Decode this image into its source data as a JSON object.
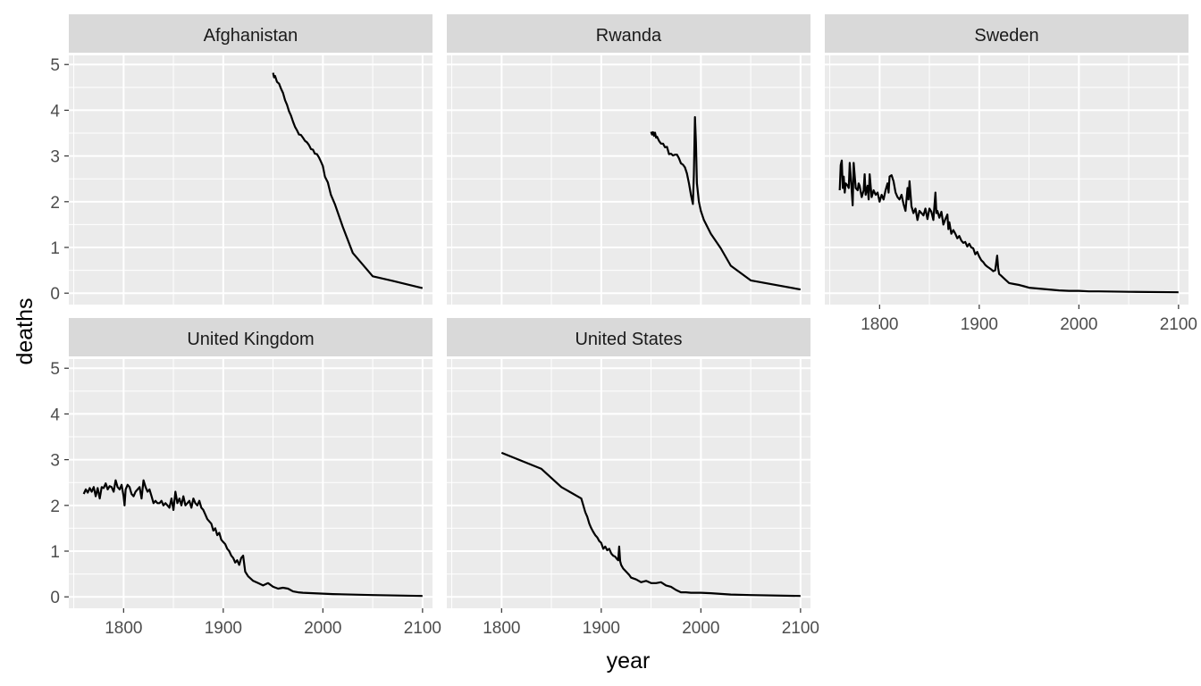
{
  "chart_data": {
    "type": "line",
    "layout": "facet_wrap",
    "xlabel": "year",
    "ylabel": "deaths",
    "xlim": [
      1745,
      2110
    ],
    "ylim": [
      -0.25,
      5.2
    ],
    "x_ticks": [
      1800,
      1900,
      2000,
      2100
    ],
    "y_ticks": [
      0,
      1,
      2,
      3,
      4,
      5
    ],
    "grid": true,
    "style": {
      "panel_background": "#ebebeb",
      "strip_background": "#d9d9d9",
      "grid_color": "#ffffff",
      "line_color": "#000000"
    },
    "panels": [
      {
        "name": "Afghanistan",
        "x": [
          1950,
          1951,
          1952,
          1954,
          1956,
          1958,
          1960,
          1962,
          1964,
          1966,
          1968,
          1970,
          1972,
          1974,
          1976,
          1978,
          1980,
          1982,
          1984,
          1986,
          1988,
          1990,
          1992,
          1994,
          1996,
          1998,
          2000,
          2002,
          2005,
          2008,
          2012,
          2020,
          2030,
          2050,
          2070,
          2100
        ],
        "y": [
          4.82,
          4.72,
          4.75,
          4.62,
          4.58,
          4.47,
          4.38,
          4.22,
          4.12,
          3.98,
          3.88,
          3.75,
          3.64,
          3.56,
          3.47,
          3.46,
          3.4,
          3.33,
          3.3,
          3.24,
          3.15,
          3.14,
          3.05,
          3.04,
          2.97,
          2.88,
          2.78,
          2.55,
          2.42,
          2.15,
          1.95,
          1.45,
          0.88,
          0.37,
          0.27,
          0.11
        ]
      },
      {
        "name": "Rwanda",
        "x": [
          1950,
          1951,
          1952,
          1953,
          1954,
          1955,
          1956,
          1958,
          1960,
          1962,
          1964,
          1966,
          1968,
          1970,
          1972,
          1974,
          1976,
          1978,
          1980,
          1982,
          1984,
          1986,
          1988,
          1990,
          1991,
          1992,
          1993,
          1994,
          1995,
          1996,
          1998,
          2000,
          2003,
          2010,
          2020,
          2030,
          2050,
          2100
        ],
        "y": [
          3.53,
          3.47,
          3.52,
          3.44,
          3.51,
          3.4,
          3.42,
          3.33,
          3.27,
          3.27,
          3.19,
          3.2,
          3.04,
          3.05,
          3.01,
          3.03,
          3.03,
          2.95,
          2.84,
          2.81,
          2.75,
          2.62,
          2.4,
          2.15,
          2.05,
          1.95,
          2.6,
          3.85,
          3.3,
          2.4,
          2.0,
          1.8,
          1.6,
          1.3,
          0.98,
          0.6,
          0.28,
          0.08
        ]
      },
      {
        "name": "Sweden",
        "x": [
          1760,
          1761,
          1762,
          1763,
          1764,
          1765,
          1766,
          1768,
          1769,
          1770,
          1772,
          1773,
          1774,
          1776,
          1778,
          1779,
          1780,
          1782,
          1784,
          1785,
          1786,
          1788,
          1789,
          1790,
          1792,
          1794,
          1796,
          1798,
          1800,
          1802,
          1804,
          1806,
          1808,
          1809,
          1810,
          1812,
          1814,
          1816,
          1818,
          1820,
          1822,
          1824,
          1826,
          1828,
          1829,
          1830,
          1832,
          1834,
          1836,
          1838,
          1840,
          1842,
          1844,
          1846,
          1848,
          1850,
          1852,
          1854,
          1856,
          1857,
          1858,
          1860,
          1862,
          1864,
          1866,
          1868,
          1869,
          1870,
          1872,
          1874,
          1876,
          1878,
          1880,
          1882,
          1884,
          1886,
          1888,
          1890,
          1892,
          1894,
          1896,
          1898,
          1900,
          1902,
          1904,
          1906,
          1908,
          1910,
          1912,
          1914,
          1916,
          1918,
          1919,
          1920,
          1922,
          1925,
          1930,
          1935,
          1940,
          1945,
          1950,
          1960,
          1970,
          1980,
          1990,
          2000,
          2010,
          2020,
          2050,
          2100
        ],
        "y": [
          2.25,
          2.8,
          2.9,
          2.3,
          2.55,
          2.2,
          2.4,
          2.35,
          2.3,
          2.85,
          2.25,
          1.92,
          2.85,
          2.3,
          2.25,
          2.4,
          2.35,
          2.1,
          2.25,
          2.6,
          2.15,
          2.35,
          2.05,
          2.6,
          2.1,
          2.25,
          2.15,
          2.2,
          2.0,
          2.15,
          2.05,
          2.25,
          2.4,
          2.2,
          2.55,
          2.58,
          2.45,
          2.2,
          2.1,
          2.05,
          2.15,
          1.95,
          1.8,
          2.3,
          2.05,
          2.45,
          1.9,
          1.75,
          1.85,
          1.6,
          1.8,
          1.75,
          1.7,
          1.85,
          1.62,
          1.85,
          1.78,
          1.6,
          2.2,
          1.75,
          1.8,
          1.65,
          1.78,
          1.5,
          1.62,
          1.72,
          1.4,
          1.55,
          1.3,
          1.38,
          1.3,
          1.2,
          1.25,
          1.15,
          1.1,
          1.12,
          1.02,
          1.08,
          1.0,
          0.98,
          0.85,
          0.9,
          0.8,
          0.72,
          0.68,
          0.62,
          0.58,
          0.55,
          0.52,
          0.48,
          0.5,
          0.82,
          0.55,
          0.42,
          0.38,
          0.32,
          0.22,
          0.2,
          0.18,
          0.15,
          0.12,
          0.1,
          0.08,
          0.06,
          0.05,
          0.05,
          0.04,
          0.04,
          0.03,
          0.02
        ]
      },
      {
        "name": "United Kingdom",
        "x": [
          1760,
          1762,
          1764,
          1766,
          1768,
          1770,
          1772,
          1774,
          1776,
          1778,
          1780,
          1782,
          1784,
          1786,
          1788,
          1790,
          1792,
          1794,
          1796,
          1798,
          1800,
          1801,
          1802,
          1804,
          1806,
          1808,
          1810,
          1812,
          1814,
          1816,
          1818,
          1820,
          1822,
          1824,
          1826,
          1828,
          1830,
          1832,
          1834,
          1836,
          1838,
          1840,
          1842,
          1844,
          1846,
          1848,
          1850,
          1852,
          1854,
          1856,
          1858,
          1860,
          1862,
          1864,
          1866,
          1868,
          1870,
          1872,
          1874,
          1876,
          1878,
          1880,
          1882,
          1884,
          1886,
          1888,
          1890,
          1892,
          1894,
          1896,
          1898,
          1900,
          1902,
          1904,
          1906,
          1908,
          1910,
          1912,
          1914,
          1916,
          1918,
          1920,
          1922,
          1925,
          1930,
          1935,
          1940,
          1945,
          1950,
          1955,
          1960,
          1965,
          1970,
          1975,
          1980,
          1990,
          2000,
          2010,
          2050,
          2100
        ],
        "y": [
          2.25,
          2.35,
          2.28,
          2.38,
          2.3,
          2.4,
          2.2,
          2.38,
          2.15,
          2.4,
          2.38,
          2.48,
          2.35,
          2.42,
          2.4,
          2.3,
          2.55,
          2.4,
          2.35,
          2.45,
          2.2,
          2.0,
          2.35,
          2.45,
          2.4,
          2.25,
          2.2,
          2.3,
          2.35,
          2.4,
          2.15,
          2.55,
          2.4,
          2.3,
          2.35,
          2.2,
          2.05,
          2.1,
          2.05,
          2.05,
          2.1,
          2.0,
          2.05,
          2.0,
          1.95,
          2.15,
          1.9,
          2.3,
          2.05,
          2.15,
          2.0,
          2.2,
          2.0,
          2.05,
          2.1,
          1.95,
          2.15,
          2.05,
          2.0,
          2.1,
          1.95,
          1.9,
          1.8,
          1.7,
          1.65,
          1.6,
          1.45,
          1.5,
          1.35,
          1.4,
          1.25,
          1.2,
          1.15,
          1.05,
          1.0,
          0.9,
          0.85,
          0.75,
          0.8,
          0.7,
          0.85,
          0.9,
          0.55,
          0.45,
          0.35,
          0.3,
          0.25,
          0.3,
          0.22,
          0.18,
          0.2,
          0.18,
          0.12,
          0.1,
          0.09,
          0.08,
          0.07,
          0.06,
          0.04,
          0.02
        ]
      },
      {
        "name": "United States",
        "x": [
          1800,
          1840,
          1860,
          1880,
          1884,
          1886,
          1888,
          1890,
          1892,
          1894,
          1896,
          1898,
          1900,
          1902,
          1904,
          1906,
          1908,
          1910,
          1912,
          1914,
          1916,
          1917,
          1918,
          1919,
          1920,
          1922,
          1925,
          1928,
          1930,
          1935,
          1940,
          1945,
          1950,
          1955,
          1960,
          1965,
          1970,
          1975,
          1980,
          1985,
          1990,
          2000,
          2010,
          2030,
          2050,
          2100
        ],
        "y": [
          3.15,
          2.8,
          2.4,
          2.15,
          1.85,
          1.75,
          1.6,
          1.5,
          1.42,
          1.35,
          1.3,
          1.22,
          1.18,
          1.05,
          1.1,
          1.02,
          1.05,
          0.95,
          0.9,
          0.88,
          0.82,
          0.8,
          1.1,
          0.78,
          0.7,
          0.62,
          0.55,
          0.48,
          0.42,
          0.38,
          0.32,
          0.35,
          0.3,
          0.3,
          0.32,
          0.25,
          0.22,
          0.15,
          0.1,
          0.1,
          0.09,
          0.09,
          0.08,
          0.05,
          0.04,
          0.02
        ]
      }
    ]
  }
}
